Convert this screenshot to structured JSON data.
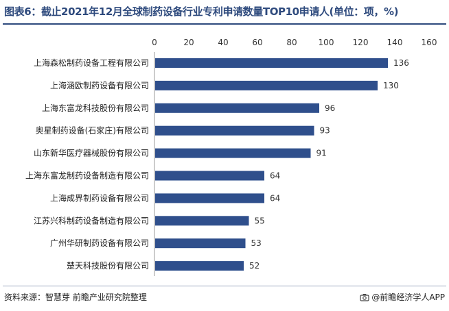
{
  "header": {
    "title": "图表6：截止2021年12月全球制药设备行业专利申请数量TOP10申请人(单位：项，%)"
  },
  "footer": {
    "source": "资料来源：智慧芽 前瞻产业研究院整理",
    "brand": "@前瞻经济学人APP"
  },
  "colors": {
    "bar": "#2f4f8c",
    "title": "#2e4a7d"
  },
  "chart_data": {
    "type": "bar",
    "orientation": "horizontal",
    "title": "图表6：截止2021年12月全球制药设备行业专利申请数量TOP10申请人(单位：项，%)",
    "categories": [
      "上海森松制药设备工程有限公司",
      "上海涵欧制药设备有限公司",
      "上海东富龙科技股份有限公司",
      "奥星制药设备(石家庄)有限公司",
      "山东新华医疗器械股份有限公司",
      "上海东富龙制药设备制造有限公司",
      "上海成界制药设备有限公司",
      "江苏兴科制药设备制造有限公司",
      "广州华研制药设备有限公司",
      "楚天科技股份有限公司"
    ],
    "values": [
      136,
      130,
      96,
      93,
      91,
      64,
      64,
      55,
      53,
      52
    ],
    "xlim": [
      0,
      160
    ],
    "xticks": [
      0,
      20,
      40,
      60,
      80,
      100,
      120,
      140,
      160
    ],
    "xaxis_position": "top",
    "grid": false,
    "data_labels": true
  }
}
